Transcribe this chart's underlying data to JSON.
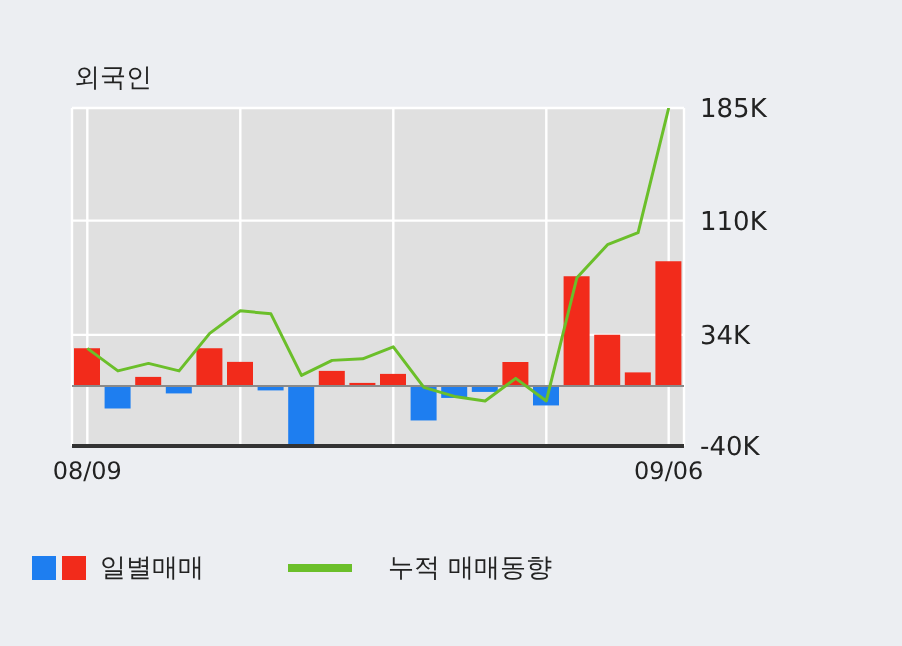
{
  "chart_data": {
    "type": "bar",
    "title": "외국인",
    "categories": [
      "08/09",
      null,
      null,
      null,
      null,
      null,
      null,
      null,
      null,
      null,
      null,
      null,
      null,
      null,
      null,
      null,
      null,
      null,
      null,
      "09/06"
    ],
    "series": [
      {
        "name": "일별매매",
        "colors": [
          "#f22b1b",
          "#1e7ef0",
          "#f22b1b",
          "#1e7ef0",
          "#f22b1b",
          "#f22b1b",
          "#1e7ef0",
          "#1e7ef0",
          "#f22b1b",
          "#f22b1b",
          "#f22b1b",
          "#1e7ef0",
          "#1e7ef0",
          "#1e7ef0",
          "#f22b1b",
          "#1e7ef0",
          "#f22b1b",
          "#f22b1b",
          "#f22b1b",
          "#f22b1b"
        ],
        "values": [
          25,
          -15,
          6,
          -5,
          25,
          16,
          -3,
          -40,
          10,
          2,
          8,
          -23,
          -8,
          -4,
          16,
          -13,
          73,
          34,
          9,
          83
        ]
      },
      {
        "name": "누적 매매동향",
        "type": "line",
        "color": "#6bbf2a",
        "values": [
          25,
          10,
          15,
          10,
          35,
          50,
          48,
          7,
          17,
          18,
          26,
          -1,
          -7,
          -10,
          5,
          -10,
          72,
          94,
          102,
          185
        ]
      }
    ],
    "ylim": [
      -40,
      185
    ],
    "yticks": [
      {
        "value": -40,
        "label": "-40K"
      },
      {
        "value": 34,
        "label": "34K"
      },
      {
        "value": 110,
        "label": "110K"
      },
      {
        "value": 185,
        "label": "185K"
      }
    ],
    "ref_lines": [
      {
        "axis": "y",
        "value": 0,
        "color": "#8a8a8a"
      }
    ],
    "grid": true,
    "legend": "bottom",
    "marker": "none"
  }
}
